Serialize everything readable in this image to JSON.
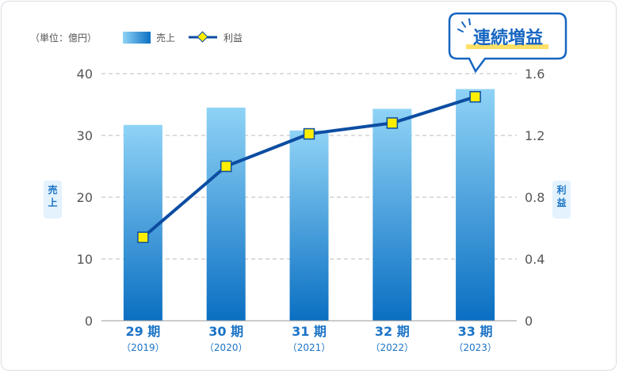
{
  "legend": {
    "unit_label": "（単位：億円）",
    "sales_label": "売上",
    "profit_label": "利益"
  },
  "axis": {
    "left_label": "売上",
    "right_label": "利益"
  },
  "callout": {
    "text": "連続増益"
  },
  "colors": {
    "bar_top": "#8fd3f6",
    "bar_bottom": "#0a6fc2",
    "line": "#0c4da2",
    "marker_fill": "#ffee00",
    "axis_text": "#555555",
    "category_text": "#1a73c6",
    "callout_border": "#1565c0",
    "callout_text": "#1565c0",
    "callout_underline": "#ffe066",
    "axis_badge_bg": "#e3f2fd"
  },
  "chart_data": {
    "type": "bar",
    "categories": [
      "29 期",
      "30 期",
      "31 期",
      "32 期",
      "33 期"
    ],
    "category_years": [
      "（2019）",
      "（2020）",
      "（2021）",
      "（2022）",
      "（2023）"
    ],
    "series": [
      {
        "name": "売上",
        "type": "bar",
        "axis": "left",
        "values": [
          31.7,
          34.5,
          30.8,
          34.3,
          37.5
        ]
      },
      {
        "name": "利益",
        "type": "line",
        "axis": "right",
        "values": [
          0.54,
          1.0,
          1.21,
          1.28,
          1.45
        ]
      }
    ],
    "ylim_left": [
      0,
      40
    ],
    "ylim_right": [
      0,
      1.6
    ],
    "yticks_left": [
      "0",
      "10",
      "20",
      "30",
      "40"
    ],
    "yticks_right": [
      "0",
      "0.4",
      "0.8",
      "1.2",
      "1.6"
    ],
    "grid": true,
    "legend_position": "top-left"
  }
}
